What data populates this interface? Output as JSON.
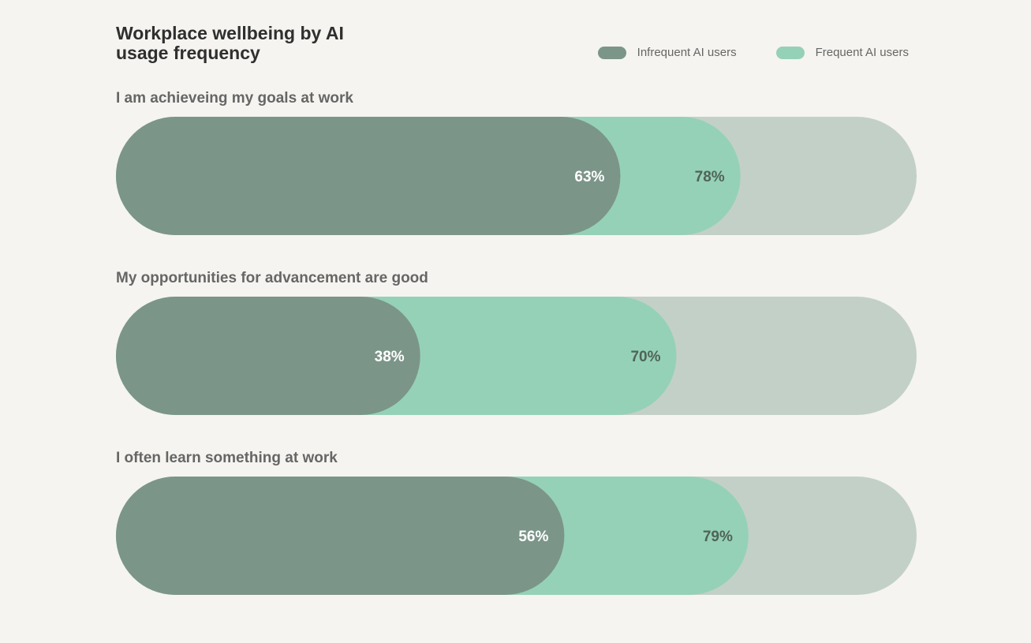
{
  "chart_data": {
    "type": "bar",
    "orientation": "horizontal",
    "title": "Workplace wellbeing by AI usage frequency",
    "categories": [
      "I am achieveing my goals at work",
      "My opportunities for advancement are good",
      "I often learn something at work"
    ],
    "series": [
      {
        "name": "Infrequent AI users",
        "values": [
          63,
          38,
          56
        ],
        "labels": [
          "63%",
          "38%",
          "56%"
        ],
        "color": "#7c9589",
        "label_color": "#ffffff"
      },
      {
        "name": "Frequent AI users",
        "values": [
          78,
          70,
          79
        ],
        "labels": [
          "78%",
          "70%",
          "79%"
        ],
        "color": "#95d1b7",
        "label_color": "#4f6458"
      }
    ],
    "xlim": [
      0,
      100
    ],
    "track_color": "#c3d0c8",
    "legend_position": "top-right",
    "grid": false
  }
}
